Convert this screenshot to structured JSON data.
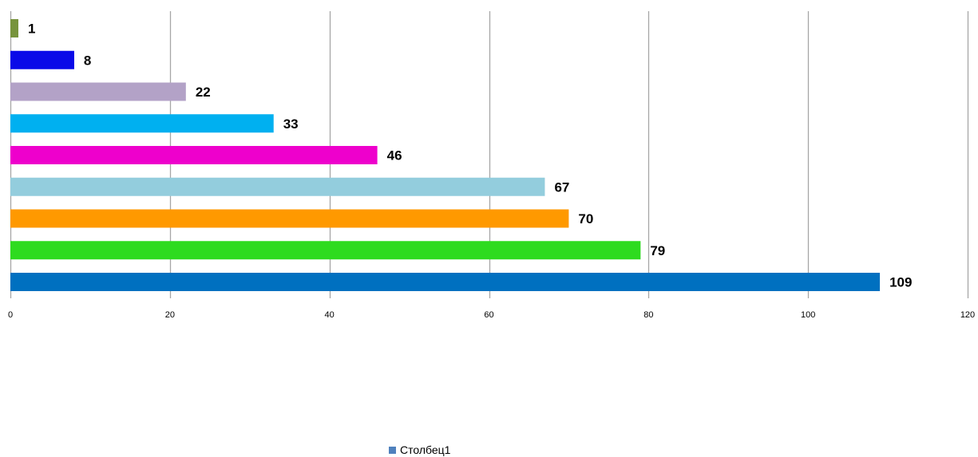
{
  "chart_data": {
    "type": "bar",
    "orientation": "horizontal",
    "values": [
      1,
      8,
      22,
      33,
      46,
      67,
      70,
      79,
      109
    ],
    "bar_labels": [
      "1",
      "8",
      "22",
      "33",
      "46",
      "67",
      "70",
      "79",
      "109"
    ],
    "colors": [
      "#77933c",
      "#0a0ae8",
      "#b3a2c7",
      "#00b0f0",
      "#ee00cc",
      "#93cddd",
      "#ff9900",
      "#2edb1f",
      "#0070c0"
    ],
    "xlim": [
      0,
      120
    ],
    "xticks": [
      0,
      20,
      40,
      60,
      80,
      100,
      120
    ],
    "xtick_labels": [
      "0",
      "20",
      "40",
      "60",
      "80",
      "100",
      "120"
    ],
    "grid": true,
    "grid_color": "#a6a6a6",
    "legend": {
      "label": "Столбец1",
      "color": "#4f81bd",
      "position": "bottom"
    }
  }
}
